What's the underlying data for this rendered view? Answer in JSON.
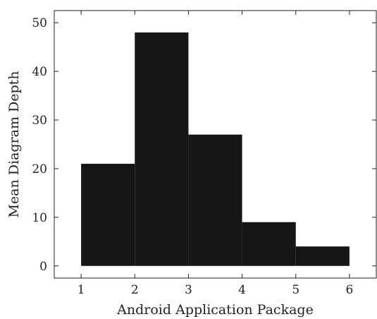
{
  "chart_data": {
    "type": "bar",
    "bar_edges": [
      1,
      2,
      3,
      4,
      5,
      6
    ],
    "values": [
      21,
      48,
      27,
      9,
      4
    ],
    "bar_color": "#161616",
    "xlabel": "Android Application Package",
    "ylabel": "Mean Diagram Depth",
    "xticks": [
      "1",
      "2",
      "3",
      "4",
      "5",
      "6"
    ],
    "yticks": [
      "0",
      "10",
      "20",
      "30",
      "40",
      "50"
    ],
    "xlim": [
      0.5,
      6.5
    ],
    "ylim": [
      -2.5,
      52.5
    ],
    "grid": false,
    "legend": "none"
  }
}
